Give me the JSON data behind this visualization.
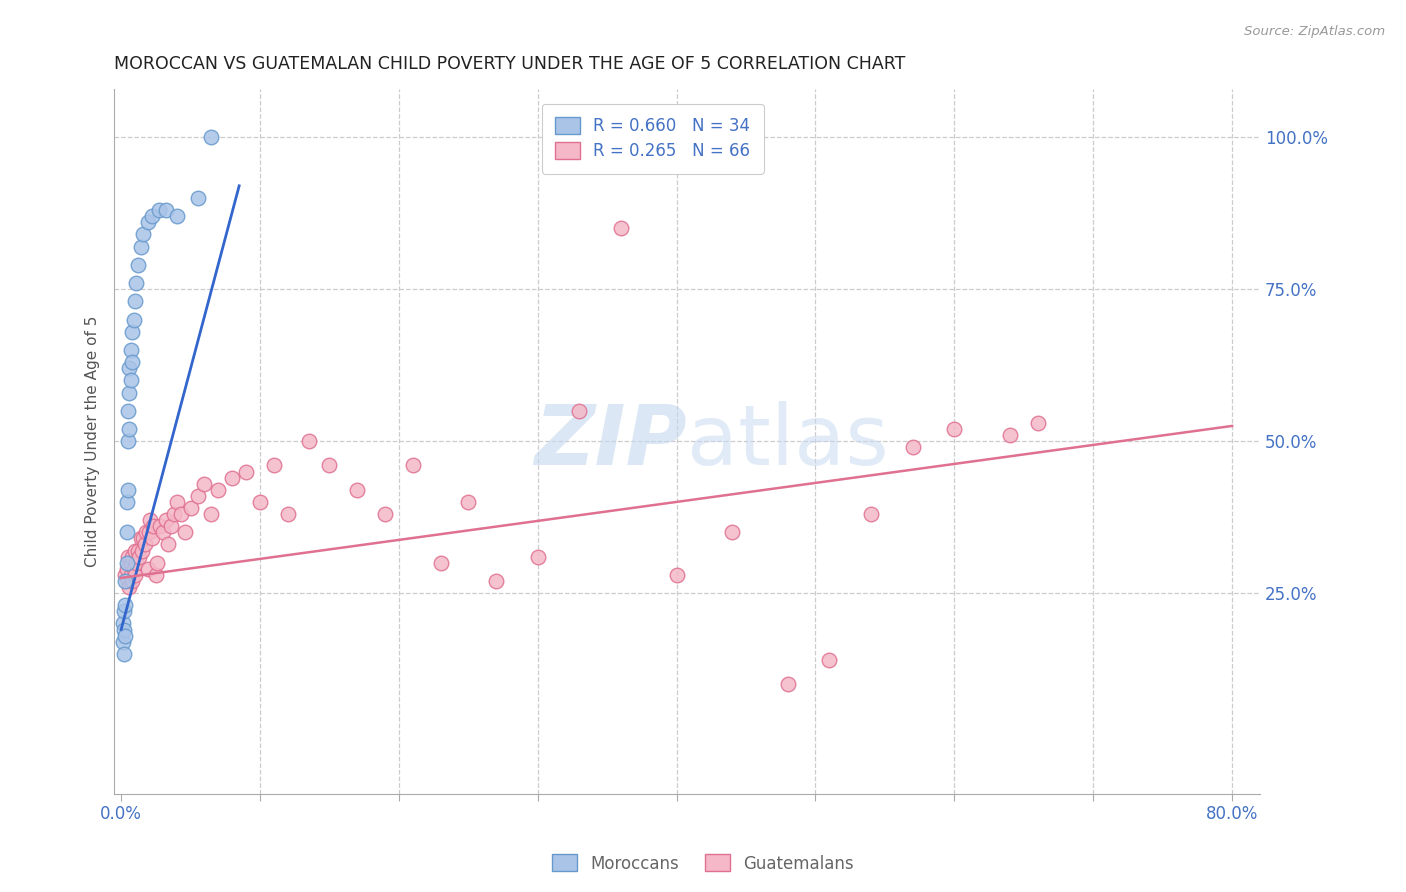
{
  "title": "MOROCCAN VS GUATEMALAN CHILD POVERTY UNDER THE AGE OF 5 CORRELATION CHART",
  "source": "Source: ZipAtlas.com",
  "ylabel": "Child Poverty Under the Age of 5",
  "background_color": "#ffffff",
  "moroccan_R": 0.66,
  "moroccan_N": 34,
  "guatemalan_R": 0.265,
  "guatemalan_N": 66,
  "moroccan_color": "#aac4e8",
  "moroccan_edge": "#6699cc",
  "guatemalan_color": "#f4b8c8",
  "guatemalan_edge": "#e07090",
  "moroccan_line_color": "#3366cc",
  "guatemalan_line_color": "#e07090",
  "right_axis_color": "#4472c4",
  "tick_label_color": "#4472c4",
  "grid_color": "#cccccc",
  "moroccan_x": [
    0.001,
    0.001,
    0.002,
    0.002,
    0.002,
    0.003,
    0.003,
    0.003,
    0.004,
    0.004,
    0.004,
    0.005,
    0.005,
    0.005,
    0.006,
    0.006,
    0.006,
    0.007,
    0.007,
    0.008,
    0.008,
    0.009,
    0.01,
    0.011,
    0.012,
    0.014,
    0.016,
    0.019,
    0.022,
    0.027,
    0.032,
    0.04,
    0.055,
    0.065
  ],
  "moroccan_y": [
    0.17,
    0.2,
    0.15,
    0.19,
    0.22,
    0.18,
    0.23,
    0.27,
    0.3,
    0.35,
    0.4,
    0.42,
    0.5,
    0.55,
    0.52,
    0.58,
    0.62,
    0.6,
    0.65,
    0.63,
    0.68,
    0.7,
    0.73,
    0.76,
    0.79,
    0.82,
    0.84,
    0.86,
    0.87,
    0.88,
    0.88,
    0.87,
    0.9,
    1.0
  ],
  "guatemalan_x": [
    0.003,
    0.004,
    0.005,
    0.005,
    0.006,
    0.007,
    0.007,
    0.008,
    0.008,
    0.009,
    0.01,
    0.01,
    0.011,
    0.012,
    0.013,
    0.014,
    0.015,
    0.016,
    0.017,
    0.018,
    0.019,
    0.02,
    0.021,
    0.022,
    0.023,
    0.025,
    0.026,
    0.028,
    0.03,
    0.032,
    0.034,
    0.036,
    0.038,
    0.04,
    0.043,
    0.046,
    0.05,
    0.055,
    0.06,
    0.065,
    0.07,
    0.08,
    0.09,
    0.1,
    0.11,
    0.12,
    0.135,
    0.15,
    0.17,
    0.19,
    0.21,
    0.23,
    0.25,
    0.27,
    0.3,
    0.33,
    0.36,
    0.4,
    0.44,
    0.48,
    0.51,
    0.54,
    0.57,
    0.6,
    0.64,
    0.66
  ],
  "guatemalan_y": [
    0.28,
    0.29,
    0.27,
    0.31,
    0.26,
    0.28,
    0.3,
    0.27,
    0.31,
    0.29,
    0.28,
    0.32,
    0.3,
    0.32,
    0.31,
    0.34,
    0.32,
    0.34,
    0.33,
    0.35,
    0.29,
    0.35,
    0.37,
    0.34,
    0.36,
    0.28,
    0.3,
    0.36,
    0.35,
    0.37,
    0.33,
    0.36,
    0.38,
    0.4,
    0.38,
    0.35,
    0.39,
    0.41,
    0.43,
    0.38,
    0.42,
    0.44,
    0.45,
    0.4,
    0.46,
    0.38,
    0.5,
    0.46,
    0.42,
    0.38,
    0.46,
    0.3,
    0.4,
    0.27,
    0.31,
    0.55,
    0.85,
    0.28,
    0.35,
    0.1,
    0.14,
    0.38,
    0.49,
    0.52,
    0.51,
    0.53
  ],
  "moroccan_line_x": [
    0.0,
    0.085
  ],
  "moroccan_line_y": [
    0.19,
    0.92
  ],
  "guatemalan_line_x": [
    0.0,
    0.8
  ],
  "guatemalan_line_y": [
    0.275,
    0.525
  ],
  "xlim": [
    -0.005,
    0.82
  ],
  "ylim": [
    -0.08,
    1.08
  ],
  "x_ticks": [
    0.0,
    0.1,
    0.2,
    0.3,
    0.4,
    0.5,
    0.6,
    0.7,
    0.8
  ],
  "x_tick_labels": [
    "0.0%",
    "",
    "",
    "",
    "",
    "",
    "",
    "",
    "80.0%"
  ],
  "y_ticks_right": [
    0.0,
    0.25,
    0.5,
    0.75,
    1.0
  ],
  "y_tick_labels_right": [
    "",
    "25.0%",
    "50.0%",
    "75.0%",
    "100.0%"
  ],
  "watermark": "ZIPatlas",
  "watermark_zip_color": "#c5d8f0",
  "watermark_atlas_color": "#c5d8f0"
}
